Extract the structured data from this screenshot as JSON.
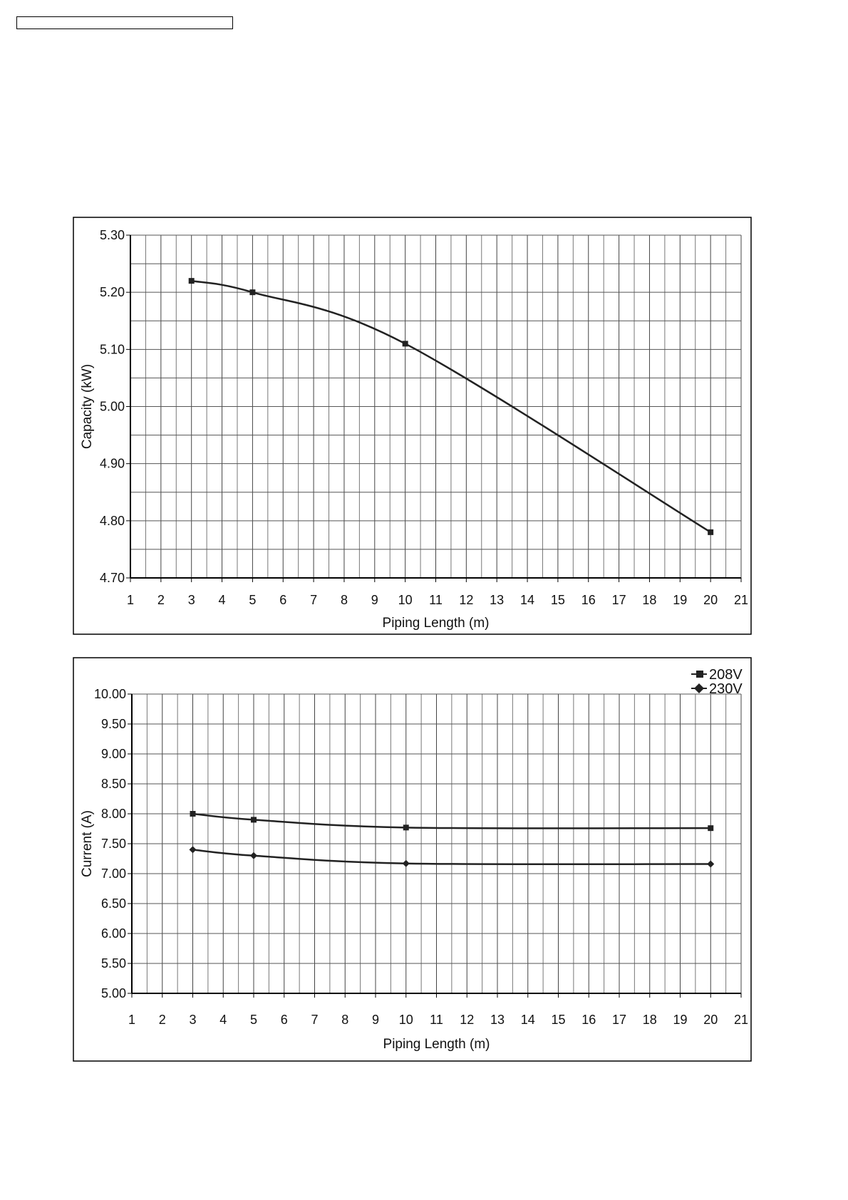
{
  "chart_data": [
    {
      "type": "line",
      "title": "",
      "xlabel": "Piping Length (m)",
      "ylabel": "Capacity (kW)",
      "xlim": [
        1,
        21
      ],
      "ylim": [
        4.7,
        5.3
      ],
      "xticks": [
        "1",
        "2",
        "3",
        "4",
        "5",
        "6",
        "7",
        "8",
        "9",
        "10",
        "11",
        "12",
        "13",
        "14",
        "15",
        "16",
        "17",
        "18",
        "19",
        "20",
        "21"
      ],
      "yticks": [
        "4.70",
        "4.80",
        "4.90",
        "5.00",
        "5.10",
        "5.20",
        "5.30"
      ],
      "grid": true,
      "series": [
        {
          "name": "Capacity",
          "marker": "square",
          "x": [
            3,
            5,
            10,
            20
          ],
          "values": [
            5.22,
            5.2,
            5.11,
            4.78
          ]
        }
      ]
    },
    {
      "type": "line",
      "title": "",
      "xlabel": "Piping Length (m)",
      "ylabel": "Current (A)",
      "xlim": [
        1,
        21
      ],
      "ylim": [
        5.0,
        10.0
      ],
      "xticks": [
        "1",
        "2",
        "3",
        "4",
        "5",
        "6",
        "7",
        "8",
        "9",
        "10",
        "11",
        "12",
        "13",
        "14",
        "15",
        "16",
        "17",
        "18",
        "19",
        "20",
        "21"
      ],
      "yticks": [
        "5.00",
        "5.50",
        "6.00",
        "6.50",
        "7.00",
        "7.50",
        "8.00",
        "8.50",
        "9.00",
        "9.50",
        "10.00"
      ],
      "grid": true,
      "legend": "top-right",
      "series": [
        {
          "name": "208V",
          "marker": "square",
          "x": [
            3,
            5,
            10,
            20
          ],
          "values": [
            8.0,
            7.9,
            7.77,
            7.76
          ]
        },
        {
          "name": "230V",
          "marker": "diamond",
          "x": [
            3,
            5,
            10,
            20
          ],
          "values": [
            7.4,
            7.3,
            7.17,
            7.16
          ]
        }
      ]
    }
  ]
}
